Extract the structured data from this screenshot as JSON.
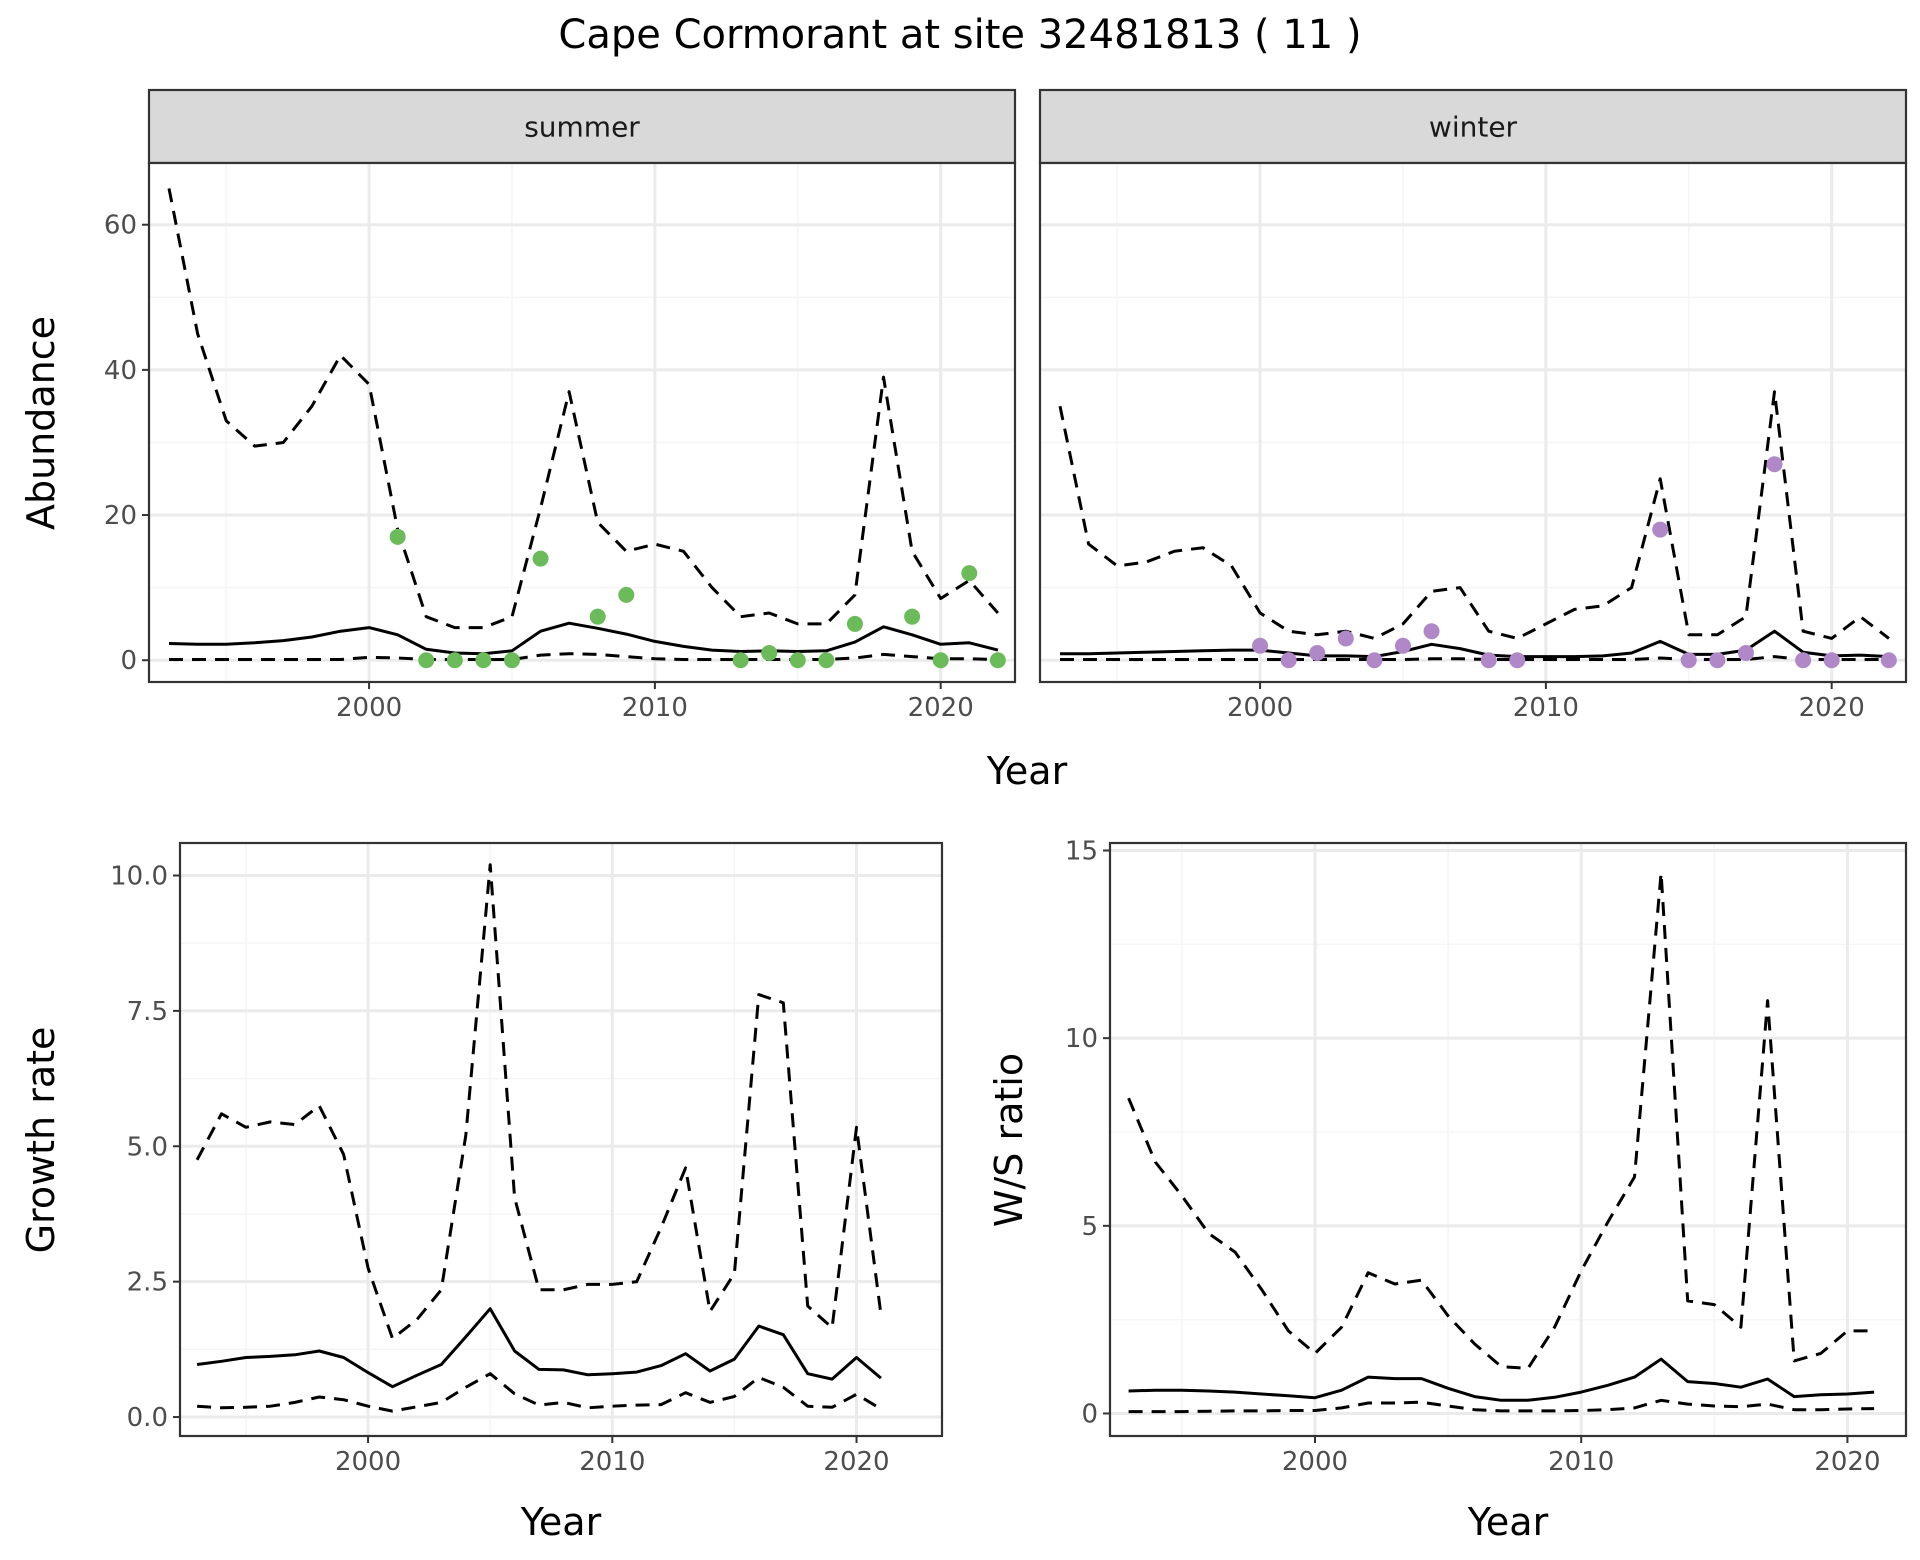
{
  "title": "Cape Cormorant at site 32481813 ( 11 )",
  "colors": {
    "summer_points": "#6cbb5b",
    "winter_points": "#b088c8",
    "strip_fill": "#d9d9d9",
    "grid_major": "#ebebeb",
    "grid_minor": "#f5f5f5",
    "line": "#000000"
  },
  "chart_data": [
    {
      "id": "abundance",
      "type": "line",
      "facet_strip": [
        "summer",
        "winter"
      ],
      "xlabel": "Year",
      "ylabel": "Abundance",
      "xlim": [
        1992.3,
        2022.6
      ],
      "ylim": [
        -3,
        68.5
      ],
      "x_ticks": [
        2000,
        2010,
        2020
      ],
      "y_ticks": [
        0,
        20,
        40,
        60
      ],
      "grid": true,
      "panels": [
        {
          "name": "summer",
          "x": [
            1993,
            1994,
            1995,
            1996,
            1997,
            1998,
            1999,
            2000,
            2001,
            2002,
            2003,
            2004,
            2005,
            2006,
            2007,
            2008,
            2009,
            2010,
            2011,
            2012,
            2013,
            2014,
            2015,
            2016,
            2017,
            2018,
            2019,
            2020,
            2021,
            2022
          ],
          "mean": [
            2.3,
            2.2,
            2.2,
            2.4,
            2.7,
            3.2,
            4,
            4.5,
            3.5,
            1.5,
            1,
            0.9,
            1.3,
            4,
            5.1,
            4.4,
            3.6,
            2.6,
            1.9,
            1.4,
            1.2,
            1.3,
            1.2,
            1.3,
            2.5,
            4.6,
            3.5,
            2.2,
            2.4,
            1.4
          ],
          "upper": [
            65,
            45,
            33,
            29.5,
            30,
            35,
            42,
            38,
            18,
            6,
            4.5,
            4.5,
            6,
            21,
            37,
            19,
            15,
            16,
            15,
            10,
            6,
            6.5,
            5,
            5,
            9,
            39,
            15,
            8.5,
            11,
            6.5
          ],
          "lower": [
            0.1,
            0.1,
            0.1,
            0.1,
            0.1,
            0.1,
            0.1,
            0.4,
            0.3,
            0.1,
            0.1,
            0.1,
            0.1,
            0.7,
            0.9,
            0.8,
            0.5,
            0.2,
            0.1,
            0.1,
            0.1,
            0.1,
            0.1,
            0.1,
            0.3,
            0.8,
            0.5,
            0.2,
            0.2,
            0.1
          ],
          "points_x": [
            2001,
            2002,
            2003,
            2004,
            2005,
            2006,
            2008,
            2009,
            2013,
            2014,
            2015,
            2016,
            2017,
            2019,
            2020,
            2021,
            2022
          ],
          "points_y": [
            17,
            0,
            0,
            0,
            0,
            14,
            6,
            9,
            0,
            1,
            0,
            0,
            5,
            6,
            0,
            12,
            0
          ]
        },
        {
          "name": "winter",
          "x": [
            1993,
            1994,
            1995,
            1996,
            1997,
            1998,
            1999,
            2000,
            2001,
            2002,
            2003,
            2004,
            2005,
            2006,
            2007,
            2008,
            2009,
            2010,
            2011,
            2012,
            2013,
            2014,
            2015,
            2016,
            2017,
            2018,
            2019,
            2020,
            2021,
            2022
          ],
          "mean": [
            0.9,
            0.9,
            1,
            1.1,
            1.2,
            1.3,
            1.4,
            1.4,
            1,
            0.6,
            0.6,
            0.5,
            1.2,
            2.2,
            1.6,
            0.7,
            0.5,
            0.5,
            0.5,
            0.6,
            1,
            2.6,
            0.8,
            0.8,
            1.4,
            4,
            1.1,
            0.6,
            0.7,
            0.5
          ],
          "upper": [
            35,
            16,
            13,
            13.5,
            15,
            15.5,
            13,
            6.5,
            4,
            3.5,
            4,
            3,
            5,
            9.5,
            10,
            4,
            3,
            5,
            7,
            7.5,
            10,
            25,
            3.5,
            3.5,
            6,
            37,
            4,
            3,
            6,
            3
          ],
          "lower": [
            0.1,
            0.1,
            0.1,
            0.1,
            0.1,
            0.1,
            0.1,
            0.1,
            0.1,
            0.1,
            0.1,
            0.1,
            0.1,
            0.2,
            0.2,
            0.1,
            0.1,
            0.1,
            0.1,
            0.1,
            0.1,
            0.3,
            0.1,
            0.1,
            0.1,
            0.5,
            0.1,
            0.1,
            0.1,
            0.1
          ],
          "points_x": [
            2000,
            2001,
            2002,
            2003,
            2004,
            2005,
            2006,
            2008,
            2009,
            2014,
            2015,
            2016,
            2017,
            2018,
            2019,
            2020,
            2022
          ],
          "points_y": [
            2,
            0,
            1,
            3,
            0,
            2,
            4,
            0,
            0,
            18,
            0,
            0,
            1,
            27,
            0,
            0,
            0
          ]
        }
      ]
    },
    {
      "id": "growth",
      "type": "line",
      "xlabel": "Year",
      "ylabel": "Growth rate",
      "xlim": [
        1992.3,
        2023.5
      ],
      "ylim": [
        -0.35,
        10.6
      ],
      "x_ticks": [
        2000,
        2010,
        2020
      ],
      "y_ticks": [
        0,
        2.5,
        5,
        7.5,
        10
      ],
      "y_tick_labels": [
        "0.0",
        "2.5",
        "5.0",
        "7.5",
        "10.0"
      ],
      "grid": true,
      "x": [
        1993,
        1994,
        1995,
        1996,
        1997,
        1998,
        1999,
        2000,
        2001,
        2002,
        2003,
        2004,
        2005,
        2006,
        2007,
        2008,
        2009,
        2010,
        2011,
        2012,
        2013,
        2014,
        2015,
        2016,
        2017,
        2018,
        2019,
        2020,
        2021
      ],
      "mean": [
        0.97,
        1.03,
        1.1,
        1.12,
        1.15,
        1.22,
        1.1,
        0.82,
        0.56,
        0.77,
        0.97,
        1.48,
        2.0,
        1.22,
        0.88,
        0.87,
        0.78,
        0.8,
        0.83,
        0.95,
        1.17,
        0.85,
        1.07,
        1.68,
        1.52,
        0.8,
        0.7,
        1.1,
        0.72
      ],
      "upper": [
        4.75,
        5.6,
        5.35,
        5.45,
        5.4,
        5.75,
        4.85,
        2.75,
        1.45,
        1.8,
        2.35,
        5.2,
        10.2,
        4.05,
        2.35,
        2.35,
        2.45,
        2.45,
        2.5,
        3.5,
        4.6,
        1.95,
        2.65,
        7.8,
        7.65,
        2.05,
        1.65,
        5.35,
        1.9
      ],
      "lower": [
        0.2,
        0.17,
        0.18,
        0.2,
        0.27,
        0.37,
        0.32,
        0.2,
        0.11,
        0.19,
        0.27,
        0.55,
        0.8,
        0.43,
        0.22,
        0.27,
        0.17,
        0.2,
        0.22,
        0.23,
        0.45,
        0.27,
        0.38,
        0.73,
        0.55,
        0.2,
        0.18,
        0.42,
        0.15
      ]
    },
    {
      "id": "ratio",
      "type": "line",
      "xlabel": "Year",
      "ylabel": "W/S ratio",
      "xlim": [
        1992.3,
        2022.2
      ],
      "ylim": [
        -0.6,
        15.2
      ],
      "x_ticks": [
        2000,
        2010,
        2020
      ],
      "y_ticks": [
        0,
        5,
        10,
        15
      ],
      "grid": true,
      "x": [
        1993,
        1994,
        1995,
        1996,
        1997,
        1998,
        1999,
        2000,
        2001,
        2002,
        2003,
        2004,
        2005,
        2006,
        2007,
        2008,
        2009,
        2010,
        2011,
        2012,
        2013,
        2014,
        2015,
        2016,
        2017,
        2018,
        2019,
        2020,
        2021
      ],
      "mean": [
        0.6,
        0.62,
        0.62,
        0.6,
        0.57,
        0.52,
        0.47,
        0.42,
        0.62,
        0.97,
        0.93,
        0.93,
        0.67,
        0.45,
        0.35,
        0.35,
        0.43,
        0.57,
        0.75,
        0.97,
        1.45,
        0.85,
        0.8,
        0.7,
        0.92,
        0.45,
        0.5,
        0.52,
        0.57
      ],
      "upper": [
        8.4,
        6.7,
        5.8,
        4.8,
        4.3,
        3.3,
        2.2,
        1.6,
        2.3,
        3.75,
        3.45,
        3.55,
        2.6,
        1.85,
        1.25,
        1.2,
        2.3,
        3.8,
        5.1,
        6.3,
        14.4,
        3,
        2.9,
        2.3,
        11,
        1.4,
        1.6,
        2.2,
        2.2
      ],
      "lower": [
        0.05,
        0.05,
        0.05,
        0.06,
        0.07,
        0.07,
        0.08,
        0.08,
        0.15,
        0.28,
        0.28,
        0.3,
        0.2,
        0.1,
        0.07,
        0.07,
        0.07,
        0.08,
        0.1,
        0.15,
        0.35,
        0.25,
        0.2,
        0.18,
        0.25,
        0.1,
        0.1,
        0.12,
        0.13
      ]
    }
  ]
}
